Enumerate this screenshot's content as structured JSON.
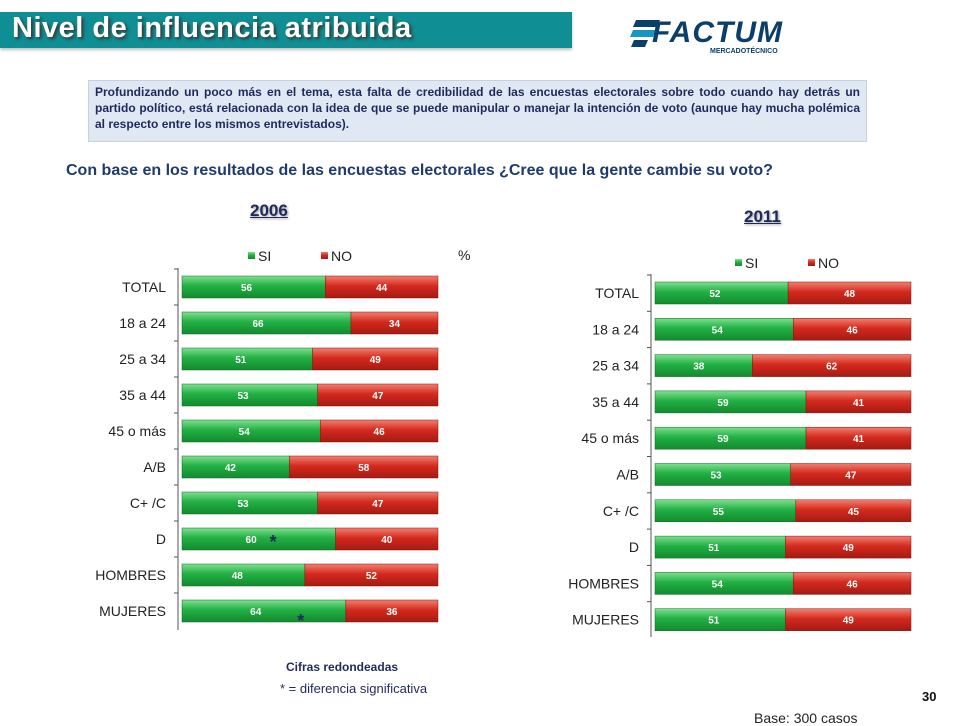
{
  "header": {
    "title": "Nivel de influencia atribuida",
    "logo_text": "FACTUM",
    "logo_subtext": "MERCADOTÉCNICO"
  },
  "intro_text": "Profundizando un poco más en el tema, esta falta de credibilidad de las encuestas electorales sobre todo cuando hay detrás un partido político, está relacionada con la idea de que se puede manipular o manejar la intención de voto (aunque hay mucha polémica al respecto entre los mismos entrevistados).",
  "question": "Con base en los resultados de las encuestas electorales ¿Cree que la gente cambie su voto?",
  "percent_symbol": "%",
  "footnotes": {
    "rounded": "Cifras redondeadas",
    "significance": "* = diferencia significativa"
  },
  "page_number": "30",
  "base_text": "Base: 300 casos",
  "colors": {
    "si": "#1fa83f",
    "no": "#d42a1e",
    "title_band": "#0f8f94"
  },
  "chart_data": [
    {
      "type": "bar",
      "orientation": "horizontal-stacked-100",
      "title": "2006",
      "categories": [
        "TOTAL",
        "18 a 24",
        "25 a 34",
        "35 a 44",
        "45 o más",
        "A/B",
        "C+ /C",
        "D",
        "HOMBRES",
        "MUJERES"
      ],
      "series": [
        {
          "name": "SI",
          "values": [
            56,
            66,
            51,
            53,
            54,
            42,
            53,
            60,
            48,
            64
          ]
        },
        {
          "name": "NO",
          "values": [
            44,
            34,
            49,
            47,
            46,
            58,
            47,
            40,
            52,
            36
          ]
        }
      ],
      "significant_markers": [
        "D",
        "MUJERES"
      ],
      "significance_symbol": "*",
      "legend": "top"
    },
    {
      "type": "bar",
      "orientation": "horizontal-stacked-100",
      "title": "2011",
      "categories": [
        "TOTAL",
        "18 a 24",
        "25 a 34",
        "35 a 44",
        "45 o más",
        "A/B",
        "C+ /C",
        "D",
        "HOMBRES",
        "MUJERES"
      ],
      "series": [
        {
          "name": "SI",
          "values": [
            52,
            54,
            38,
            59,
            59,
            53,
            55,
            51,
            54,
            51
          ]
        },
        {
          "name": "NO",
          "values": [
            48,
            46,
            62,
            41,
            41,
            47,
            45,
            49,
            46,
            49
          ]
        }
      ],
      "legend": "top"
    }
  ]
}
